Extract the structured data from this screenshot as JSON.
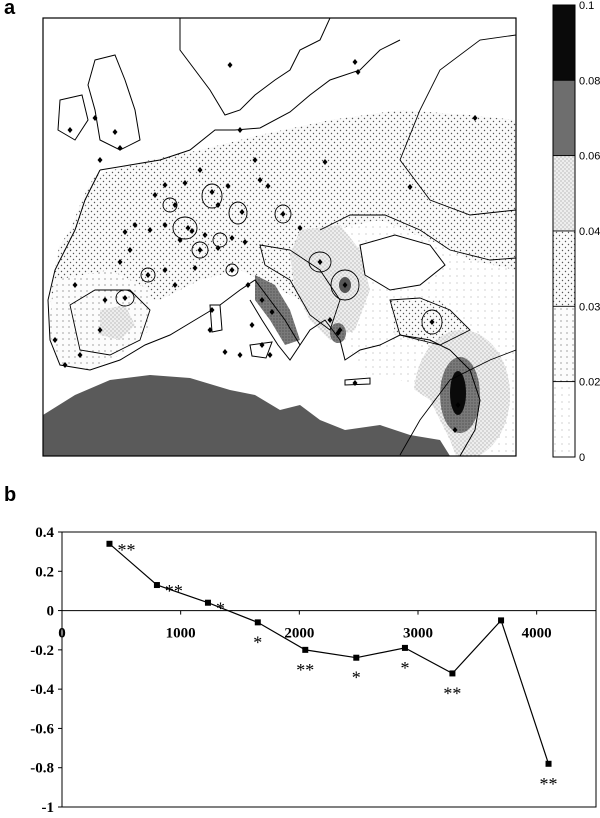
{
  "panel_a": {
    "label": "a",
    "legend": {
      "ticks": [
        "0.1",
        "0.08",
        "0.06",
        "0.04",
        "0.03",
        "0.02",
        "0"
      ],
      "fills": [
        "#0a0a0a",
        "#6e6e6e",
        "#ececec",
        "#f3f3f3",
        "#f8f8f8",
        "#fbfbfb",
        "#ffffff"
      ],
      "patterns": [
        "solid",
        "solid",
        "hatch",
        "dots",
        "dots-sparse",
        "dots-fine",
        "solid"
      ]
    },
    "colors": {
      "sea": "#ffffff",
      "land": "#ffffff",
      "desert": "#5a5a5a",
      "coast": "#000000"
    }
  },
  "panel_b": {
    "label": "b"
  },
  "chart_data": {
    "type": "line",
    "title": "",
    "xlabel": "",
    "ylabel": "",
    "xlim": [
      0,
      4500
    ],
    "ylim": [
      -1,
      0.4
    ],
    "x_ticks": [
      0,
      1000,
      2000,
      3000,
      4000
    ],
    "x_tick_labels": [
      "0",
      "1000",
      "2000",
      "3000",
      "4000"
    ],
    "y_ticks": [
      0.4,
      0.2,
      0,
      -0.2,
      -0.4,
      -0.6,
      -0.8,
      -1
    ],
    "y_tick_labels": [
      "0.4",
      "0.2",
      "0",
      "-0.2",
      "-0.4",
      "-0.6",
      "-0.8",
      "-1"
    ],
    "grid": false,
    "series": [
      {
        "x": [
          400,
          800,
          1230,
          1650,
          2050,
          2480,
          2890,
          3290,
          3700,
          4100
        ],
        "y": [
          0.34,
          0.13,
          0.04,
          -0.06,
          -0.2,
          -0.24,
          -0.19,
          -0.32,
          -0.05,
          -0.78
        ],
        "significance": [
          "**",
          "**",
          "*",
          "*",
          "**",
          "*",
          "*",
          "**",
          "",
          "**"
        ],
        "sig_position": [
          "right",
          "right",
          "right",
          "below",
          "below",
          "below",
          "below",
          "below",
          "",
          "below"
        ]
      }
    ]
  }
}
